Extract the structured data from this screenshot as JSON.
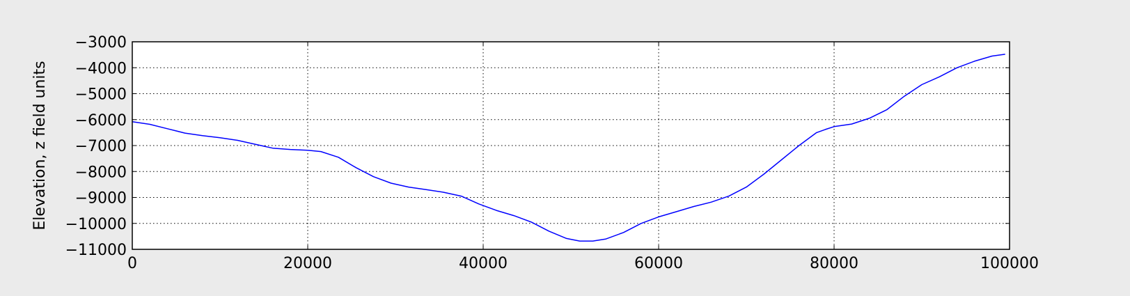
{
  "chart_data": {
    "type": "line",
    "title": "",
    "xlabel": "",
    "ylabel": "Elevation, z field units",
    "xlim": [
      0,
      100000
    ],
    "ylim": [
      -11000,
      -3000
    ],
    "grid": true,
    "grid_style": "dotted",
    "xticks": [
      0,
      20000,
      40000,
      60000,
      80000,
      100000
    ],
    "xtick_labels": [
      "0",
      "20000",
      "40000",
      "60000",
      "80000",
      "100000"
    ],
    "yticks": [
      -3000,
      -4000,
      -5000,
      -6000,
      -7000,
      -8000,
      -9000,
      -10000,
      -11000
    ],
    "ytick_labels": [
      "−3000",
      "−4000",
      "−5000",
      "−6000",
      "−7000",
      "−8000",
      "−9000",
      "−10000",
      "−11000"
    ],
    "colors": {
      "line": "#0000ff",
      "background": "#ebebeb",
      "axes_background": "#ffffff",
      "grid": "#000000"
    },
    "series": [
      {
        "x": [
          0,
          2000,
          4000,
          6000,
          8000,
          10000,
          12000,
          14000,
          16000,
          18000,
          20000,
          21500,
          23500,
          25500,
          27500,
          29500,
          31500,
          33500,
          35500,
          37500,
          39500,
          41500,
          43500,
          45500,
          47500,
          49500,
          51000,
          52500,
          54000,
          56000,
          58000,
          60000,
          62000,
          64000,
          66000,
          68000,
          70000,
          72000,
          74000,
          76000,
          78000,
          79000,
          80000,
          82000,
          84000,
          86000,
          88000,
          90000,
          92000,
          94000,
          96000,
          98000,
          99500
        ],
        "y": [
          -6080,
          -6180,
          -6350,
          -6520,
          -6620,
          -6700,
          -6800,
          -6950,
          -7100,
          -7150,
          -7180,
          -7230,
          -7450,
          -7850,
          -8200,
          -8450,
          -8600,
          -8700,
          -8800,
          -8950,
          -9250,
          -9500,
          -9700,
          -9950,
          -10300,
          -10580,
          -10680,
          -10680,
          -10600,
          -10350,
          -10000,
          -9750,
          -9550,
          -9350,
          -9180,
          -8950,
          -8600,
          -8100,
          -7550,
          -7000,
          -6500,
          -6380,
          -6270,
          -6170,
          -5950,
          -5620,
          -5100,
          -4650,
          -4350,
          -4000,
          -3750,
          -3550,
          -3480
        ]
      }
    ]
  }
}
